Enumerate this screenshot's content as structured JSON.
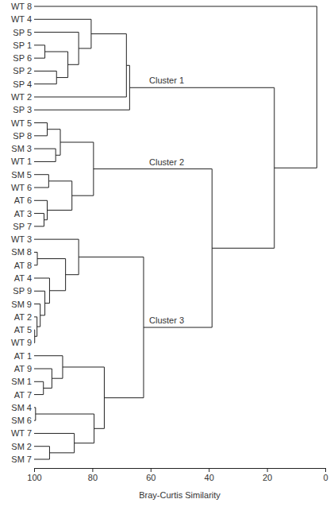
{
  "chart_data": {
    "type": "dendrogram",
    "x_label": "Bray-Curtis Similarity",
    "xlim": [
      100,
      0
    ],
    "xticks": [
      100,
      80,
      60,
      40,
      20,
      0
    ],
    "tree": {
      "similarity": 2.9,
      "children": [
        {
          "name": "WT 8"
        },
        {
          "similarity": 17.5,
          "children": [
            {
              "label": "Cluster 1",
              "similarity": 67.2,
              "children": [
                {
                  "similarity": 68.3,
                  "children": [
                    {
                      "similarity": 80.4,
                      "children": [
                        {
                          "name": "WT 4"
                        },
                        {
                          "similarity": 84.7,
                          "children": [
                            {
                              "name": "SP 5"
                            },
                            {
                              "similarity": 88.4,
                              "children": [
                                {
                                  "similarity": 96.3,
                                  "children": [
                                    {
                                      "name": "SP 1"
                                    },
                                    {
                                      "name": "SP 6"
                                    }
                                  ]
                                },
                                {
                                  "similarity": 92.3,
                                  "children": [
                                    {
                                      "name": "SP 2"
                                    },
                                    {
                                      "name": "SP 4"
                                    }
                                  ]
                                }
                              ]
                            }
                          ]
                        }
                      ]
                    },
                    {
                      "name": "WT 2"
                    }
                  ]
                },
                {
                  "name": "SP 3"
                }
              ]
            },
            {
              "similarity": 38.9,
              "children": [
                {
                  "label": "Cluster 2",
                  "similarity": 79.6,
                  "children": [
                    {
                      "similarity": 91.0,
                      "children": [
                        {
                          "similarity": 95.5,
                          "children": [
                            {
                              "name": "WT 5"
                            },
                            {
                              "name": "SP 8"
                            }
                          ]
                        },
                        {
                          "similarity": 92.6,
                          "children": [
                            {
                              "name": "SM 3"
                            },
                            {
                              "name": "WT 1"
                            }
                          ]
                        }
                      ]
                    },
                    {
                      "similarity": 87.0,
                      "children": [
                        {
                          "similarity": 95.0,
                          "children": [
                            {
                              "name": "SM 5"
                            },
                            {
                              "name": "WT 6"
                            }
                          ]
                        },
                        {
                          "similarity": 95.5,
                          "children": [
                            {
                              "name": "AT 6"
                            },
                            {
                              "similarity": 96.6,
                              "children": [
                                {
                                  "name": "AT 3"
                                },
                                {
                                  "name": "SP 7"
                                }
                              ]
                            }
                          ]
                        }
                      ]
                    }
                  ]
                },
                {
                  "label": "Cluster 3",
                  "similarity": 62.4,
                  "children": [
                    {
                      "similarity": 84.7,
                      "children": [
                        {
                          "name": "WT 3"
                        },
                        {
                          "similarity": 89.2,
                          "children": [
                            {
                              "similarity": 98.9,
                              "children": [
                                {
                                  "name": "SM 8"
                                },
                                {
                                  "name": "AT 8"
                                }
                              ]
                            },
                            {
                              "similarity": 94.7,
                              "children": [
                                {
                                  "name": "AT 4"
                                },
                                {
                                  "similarity": 96.3,
                                  "children": [
                                    {
                                      "name": "SP 9"
                                    },
                                    {
                                      "similarity": 97.9,
                                      "children": [
                                        {
                                          "name": "SM 9"
                                        },
                                        {
                                          "similarity": 99.0,
                                          "children": [
                                            {
                                              "name": "AT 2"
                                            },
                                            {
                                              "similarity": 99.8,
                                              "children": [
                                                {
                                                  "name": "AT 5"
                                                },
                                                {
                                                  "name": "WT 9"
                                                }
                                              ]
                                            }
                                          ]
                                        }
                                      ]
                                    }
                                  ]
                                }
                              ]
                            }
                          ]
                        }
                      ]
                    },
                    {
                      "similarity": 75.9,
                      "children": [
                        {
                          "similarity": 90.2,
                          "children": [
                            {
                              "name": "AT 1"
                            },
                            {
                              "similarity": 93.9,
                              "children": [
                                {
                                  "name": "AT 9"
                                },
                                {
                                  "similarity": 96.8,
                                  "children": [
                                    {
                                      "name": "SM 1"
                                    },
                                    {
                                      "name": "AT 7"
                                    }
                                  ]
                                }
                              ]
                            }
                          ]
                        },
                        {
                          "similarity": 79.4,
                          "children": [
                            {
                              "similarity": 99.5,
                              "children": [
                                {
                                  "name": "SM 4"
                                },
                                {
                                  "name": "SM 6"
                                }
                              ]
                            },
                            {
                              "similarity": 86.2,
                              "children": [
                                {
                                  "name": "WT 7"
                                },
                                {
                                  "similarity": 94.7,
                                  "children": [
                                    {
                                      "name": "SM 2"
                                    },
                                    {
                                      "name": "SM 7"
                                    }
                                  ]
                                }
                              ]
                            }
                          ]
                        }
                      ]
                    }
                  ]
                }
              ]
            }
          ]
        }
      ]
    }
  }
}
